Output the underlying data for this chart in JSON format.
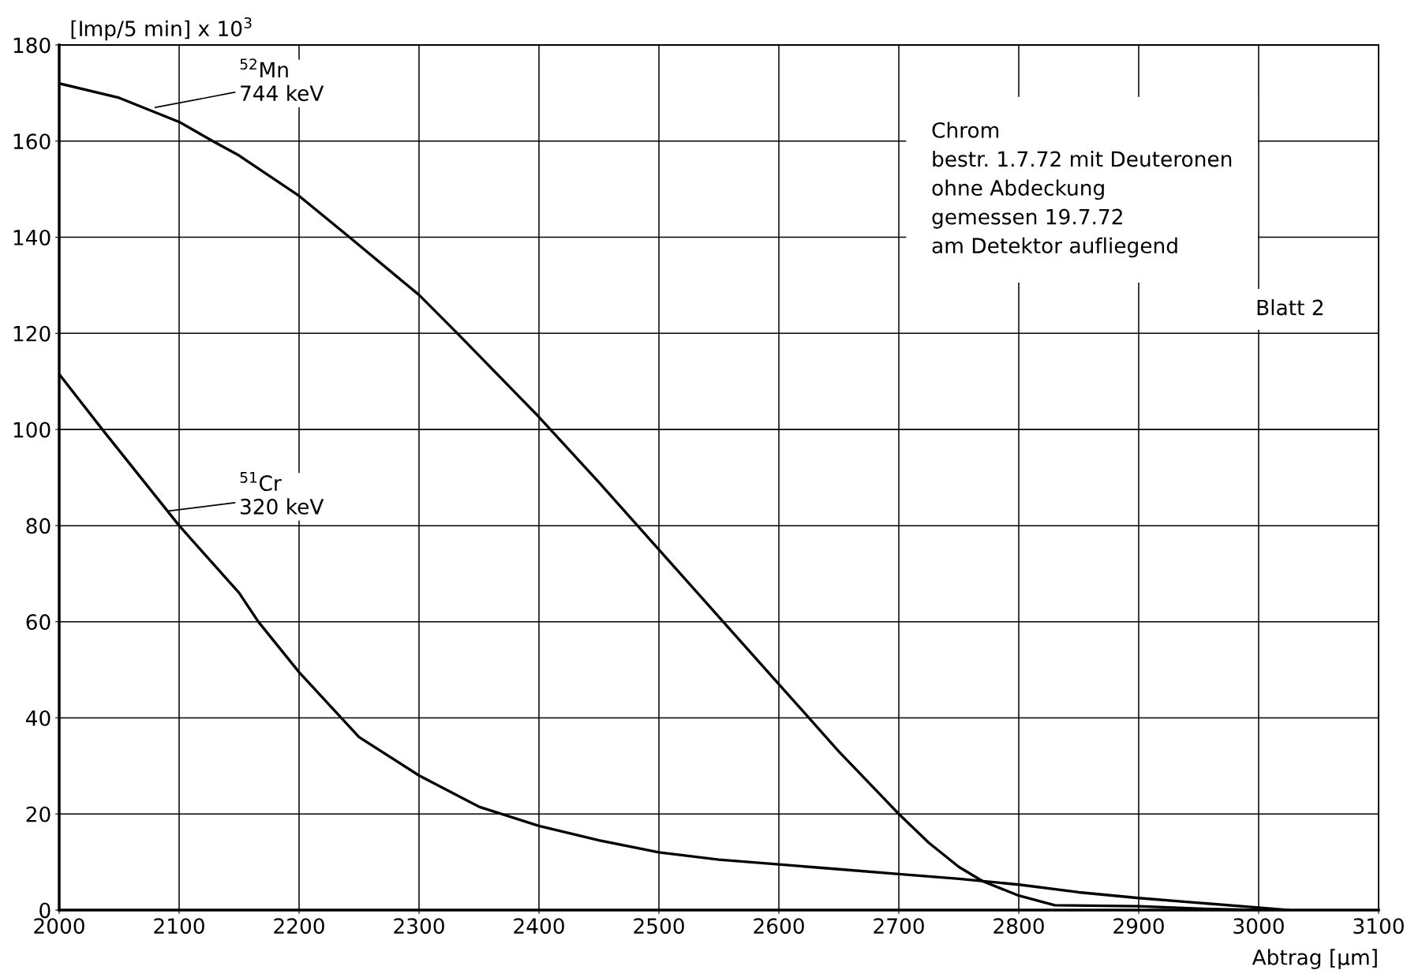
{
  "chart_data": {
    "type": "line",
    "ylabel": "[Imp/5 min] x 10$^{3}$",
    "xlabel": "Abtrag [µm]",
    "xlim": [
      2000,
      3100
    ],
    "xticks": [
      2000,
      2100,
      2200,
      2300,
      2400,
      2500,
      2600,
      2700,
      2800,
      2900,
      3000,
      3100
    ],
    "ylim": [
      0,
      180
    ],
    "yticks": [
      0,
      20,
      40,
      60,
      80,
      100,
      120,
      140,
      160,
      180
    ],
    "grid": true,
    "marker": "none",
    "line_style": "solid",
    "series": [
      {
        "color": "#000000",
        "x": [
          2000,
          2050,
          2100,
          2128,
          2150,
          2200,
          2242,
          2300,
          2332,
          2400,
          2450,
          2500,
          2550,
          2600,
          2650,
          2700,
          2725,
          2750,
          2770,
          2800,
          2830,
          2900,
          2950,
          3000,
          3020
        ],
        "values": [
          172,
          169,
          164,
          160,
          157,
          148.6,
          140,
          128,
          120,
          102.6,
          89,
          75,
          61,
          47,
          33,
          20,
          14,
          9,
          6,
          3,
          1,
          0.8,
          0.3,
          0,
          0
        ]
      },
      {
        "color": "#000000",
        "x": [
          2000,
          2036,
          2100,
          2150,
          2166,
          2200,
          2250,
          2300,
          2350,
          2400,
          2450,
          2500,
          2550,
          2600,
          2650,
          2700,
          2750,
          2800,
          2850,
          2900,
          2950,
          3000,
          3025
        ],
        "values": [
          111.5,
          100,
          80,
          66,
          60,
          49.5,
          36,
          28,
          21.5,
          17.5,
          14.5,
          12,
          10.5,
          9.5,
          8.5,
          7.5,
          6.5,
          5.3,
          3.7,
          2.5,
          1.5,
          0.5,
          0
        ]
      }
    ],
    "annotations": [
      {
        "text": "$^{52}$Mn\n744 keV",
        "x": 2080,
        "y": 167
      },
      {
        "text": "$^{51}$Cr\n320 keV",
        "x": 2090,
        "y": 83
      },
      "Chrom\nbestr. 1.7.72 mit Deuteronen\nohne Abdeckung\ngemessen 19.7.72\nam Detektor aufliegend",
      "Blatt 2"
    ]
  }
}
